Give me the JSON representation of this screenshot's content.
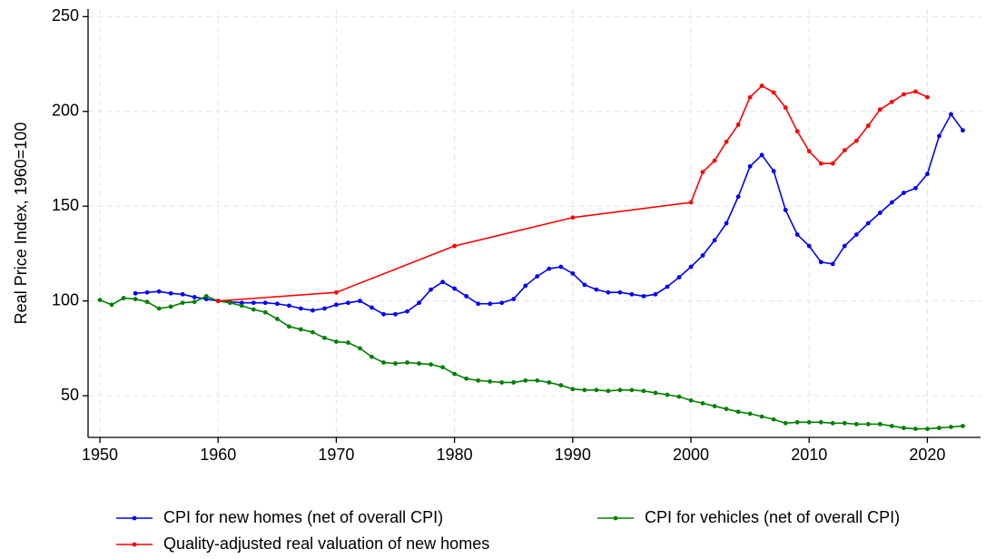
{
  "chart_data": {
    "type": "line",
    "y_label": "Real Price Index, 1960=100",
    "xlim": [
      1949,
      2024.5
    ],
    "ylim": [
      28,
      254
    ],
    "xticks": [
      1950,
      1960,
      1970,
      1980,
      1990,
      2000,
      2010,
      2020
    ],
    "yticks": [
      50,
      100,
      150,
      200,
      250
    ],
    "grid": true,
    "legend": "bottom",
    "series": [
      {
        "name": "CPI for new homes (net of overall CPI)",
        "color": "#0000ff",
        "x": [
          1953,
          1954,
          1955,
          1956,
          1957,
          1958,
          1959,
          1960,
          1961,
          1962,
          1963,
          1964,
          1965,
          1966,
          1967,
          1968,
          1969,
          1970,
          1971,
          1972,
          1973,
          1974,
          1975,
          1976,
          1977,
          1978,
          1979,
          1980,
          1981,
          1982,
          1983,
          1984,
          1985,
          1986,
          1987,
          1988,
          1989,
          1990,
          1991,
          1992,
          1993,
          1994,
          1995,
          1996,
          1997,
          1998,
          1999,
          2000,
          2001,
          2002,
          2003,
          2004,
          2005,
          2006,
          2007,
          2008,
          2009,
          2010,
          2011,
          2012,
          2013,
          2014,
          2015,
          2016,
          2017,
          2018,
          2019,
          2020,
          2021,
          2022,
          2023
        ],
        "values": [
          104,
          104.5,
          105,
          104,
          103.5,
          102,
          101,
          100,
          99.5,
          99,
          99,
          99,
          98.5,
          97.5,
          96,
          95,
          96,
          98,
          99,
          100,
          96.5,
          93,
          93,
          94.5,
          99,
          106,
          110,
          106.5,
          102.5,
          98.5,
          98.5,
          99,
          101,
          108,
          113,
          117,
          118,
          114.5,
          108.5,
          106,
          104.5,
          104.5,
          103.5,
          102.5,
          103.5,
          107.5,
          112.5,
          118,
          124,
          132,
          141,
          155,
          171,
          177,
          168.5,
          148,
          135,
          129,
          120.5,
          119.5,
          129,
          135,
          141,
          146.5,
          152,
          157,
          159.5,
          167,
          187,
          198.5,
          190
        ]
      },
      {
        "name": "CPI for vehicles (net of overall CPI)",
        "color": "#008000",
        "x": [
          1950,
          1951,
          1952,
          1953,
          1954,
          1955,
          1956,
          1957,
          1958,
          1959,
          1960,
          1961,
          1962,
          1963,
          1964,
          1965,
          1966,
          1967,
          1968,
          1969,
          1970,
          1971,
          1972,
          1973,
          1974,
          1975,
          1976,
          1977,
          1978,
          1979,
          1980,
          1981,
          1982,
          1983,
          1984,
          1985,
          1986,
          1987,
          1988,
          1989,
          1990,
          1991,
          1992,
          1993,
          1994,
          1995,
          1996,
          1997,
          1998,
          1999,
          2000,
          2001,
          2002,
          2003,
          2004,
          2005,
          2006,
          2007,
          2008,
          2009,
          2010,
          2011,
          2012,
          2013,
          2014,
          2015,
          2016,
          2017,
          2018,
          2019,
          2020,
          2021,
          2022,
          2023
        ],
        "values": [
          100.5,
          98,
          101.5,
          101,
          99.5,
          96,
          97,
          99,
          99.5,
          102.5,
          100,
          99,
          97.5,
          95.5,
          94,
          90.5,
          86.5,
          85,
          83.5,
          80.5,
          78.5,
          78,
          75,
          70.5,
          67.5,
          67,
          67.5,
          67,
          66.5,
          65,
          61.5,
          59,
          58,
          57.5,
          57,
          57,
          58,
          58,
          57,
          55.5,
          53.5,
          53,
          53,
          52.5,
          53,
          53,
          52.5,
          51.5,
          50.5,
          49.5,
          47.5,
          46,
          44.5,
          43,
          41.5,
          40.5,
          39,
          37.5,
          35.5,
          36,
          36,
          36,
          35.5,
          35.5,
          35,
          35,
          35,
          34,
          33,
          32.5,
          32.5,
          33,
          33.5,
          34
        ]
      },
      {
        "name": "Quality-adjusted real valuation of new homes",
        "color": "#ff0000",
        "x": [
          1960,
          1970,
          1980,
          1990,
          2000,
          2001,
          2002,
          2003,
          2004,
          2005,
          2006,
          2007,
          2008,
          2009,
          2010,
          2011,
          2012,
          2013,
          2014,
          2015,
          2016,
          2017,
          2018,
          2019,
          2020
        ],
        "values": [
          100,
          104.5,
          129,
          144,
          152,
          168,
          174,
          184,
          193,
          207.5,
          213.5,
          210,
          202,
          189.5,
          179,
          172.5,
          172.5,
          179.5,
          184.5,
          192.5,
          201,
          205,
          209,
          210.5,
          207.5
        ]
      }
    ]
  }
}
